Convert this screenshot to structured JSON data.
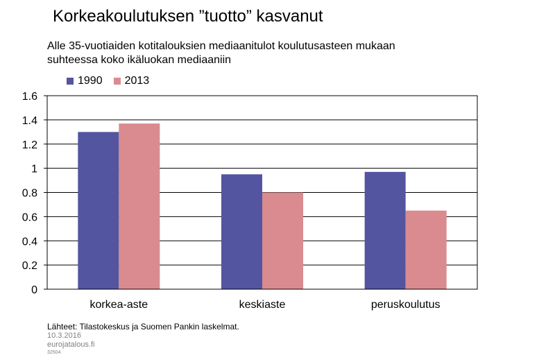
{
  "chart_data": {
    "type": "bar",
    "title": "Korkeakoulutuksen ”tuotto” kasvanut",
    "subtitle_lines": [
      "Alle 35-vuotiaiden kotitalouksien mediaanitulot koulutusasteen mukaan",
      "suhteessa koko ikäluokan mediaaniin"
    ],
    "categories": [
      "korkea-aste",
      "keskiaste",
      "peruskoulutus"
    ],
    "series": [
      {
        "name": "1990",
        "values": [
          1.3,
          0.95,
          0.97
        ],
        "color": "#5355a0"
      },
      {
        "name": "2013",
        "values": [
          1.37,
          0.8,
          0.65
        ],
        "color": "#d98b8f"
      }
    ],
    "yticks": [
      "0",
      "0.2",
      "0.4",
      "0.6",
      "0.8",
      "1",
      "1.2",
      "1.4",
      "1.6"
    ],
    "ylim": [
      0,
      1.6
    ],
    "grid": true,
    "legend_position": "top-left"
  },
  "footer": {
    "source": "Lähteet: Tilastokeskus ja Suomen Pankin laskelmat.",
    "date": "10.3.2016",
    "site": "eurojatalous.fi",
    "code": "32504"
  }
}
